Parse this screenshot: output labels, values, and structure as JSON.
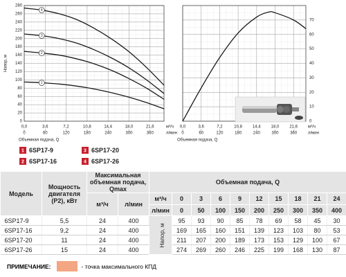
{
  "chart_data": [
    {
      "type": "line",
      "y_label": "Напор, м",
      "x_label": "Объемная подача, Q",
      "x_unit": "м³/ч",
      "x2_unit": "л/мин",
      "xlim": [
        0,
        24
      ],
      "xticks": [
        {
          "value": 0,
          "label": "0,0"
        },
        {
          "value": 3.6,
          "label": "3,6"
        },
        {
          "value": 7.2,
          "label": "7,2"
        },
        {
          "value": 10.8,
          "label": "10,8"
        },
        {
          "value": 14.4,
          "label": "14,4"
        },
        {
          "value": 18,
          "label": "18,0"
        },
        {
          "value": 21.6,
          "label": "21,6"
        }
      ],
      "x2lim": [
        0,
        400
      ],
      "x2ticks": [
        0,
        60,
        120,
        180,
        240,
        300,
        360
      ],
      "ylim": [
        0,
        280
      ],
      "yticks": [
        0,
        20,
        40,
        60,
        80,
        100,
        120,
        140,
        160,
        180,
        200,
        220,
        240,
        260,
        280
      ],
      "grid": true,
      "x": [
        0,
        3,
        6,
        9,
        12,
        15,
        18,
        21,
        24
      ],
      "series": [
        {
          "name": "6SP17-9",
          "marker": "1",
          "color": "#1a1a1a",
          "values": [
            95,
            93,
            90,
            85,
            78,
            69,
            58,
            45,
            30
          ]
        },
        {
          "name": "6SP17-16",
          "marker": "2",
          "color": "#1a1a1a",
          "values": [
            169,
            165,
            160,
            151,
            139,
            123,
            103,
            80,
            53
          ]
        },
        {
          "name": "6SP17-20",
          "marker": "3",
          "color": "#1a1a1a",
          "values": [
            211,
            207,
            200,
            189,
            173,
            153,
            129,
            100,
            67
          ]
        },
        {
          "name": "6SP17-26",
          "marker": "4",
          "color": "#1a1a1a",
          "values": [
            274,
            269,
            260,
            246,
            225,
            199,
            168,
            130,
            87
          ]
        }
      ],
      "legend_color": "#c8202e"
    },
    {
      "type": "line",
      "x_label": "Объемная подача, Q",
      "x_unit": "м³/ч",
      "x2_unit": "л/мин",
      "xlim": [
        0,
        24
      ],
      "xticks": [
        {
          "value": 0,
          "label": "0,0"
        },
        {
          "value": 3.6,
          "label": "3,6"
        },
        {
          "value": 7.2,
          "label": "7,2"
        },
        {
          "value": 10.8,
          "label": "10,8"
        },
        {
          "value": 14.4,
          "label": "14,4"
        },
        {
          "value": 18,
          "label": "18,0"
        },
        {
          "value": 21.6,
          "label": "21,6"
        }
      ],
      "x2lim": [
        0,
        400
      ],
      "x2ticks": [
        0,
        60,
        120,
        180,
        240,
        300,
        360
      ],
      "ylim": [
        0,
        80
      ],
      "yticks": [
        0,
        10,
        20,
        30,
        40,
        50,
        60,
        70
      ],
      "grid": true,
      "x": [
        0,
        3.6,
        7.2,
        10.8,
        14.4,
        16.8,
        18,
        21.6,
        24
      ],
      "series": [
        {
          "color": "#1a1a1a",
          "values": [
            0,
            23,
            44,
            61,
            72,
            75.5,
            75,
            70,
            64
          ]
        }
      ]
    }
  ],
  "table": {
    "header": {
      "model": "Модель",
      "power": "Мощность двигателя (P2), кВт",
      "qmax": "Максимальная объемная подача, Qmax",
      "qmax_units": [
        "м³/ч",
        "л/мин"
      ],
      "flow": "Объемная подача, Q",
      "flow_units": [
        "м³/ч",
        "л/мин"
      ],
      "head": "Напор, м",
      "flow_m3h": [
        0,
        3,
        6,
        9,
        12,
        15,
        18,
        21,
        24
      ],
      "flow_lmin": [
        0,
        50,
        100,
        150,
        200,
        250,
        300,
        350,
        400
      ]
    },
    "rows": [
      [
        "6SP17-9",
        "5,5",
        24,
        400,
        95,
        93,
        90,
        85,
        78,
        69,
        58,
        45,
        30
      ],
      [
        "6SP17-16",
        "9,2",
        24,
        400,
        169,
        165,
        160,
        151,
        139,
        123,
        103,
        80,
        53
      ],
      [
        "6SP17-20",
        11,
        24,
        400,
        211,
        207,
        200,
        189,
        173,
        153,
        129,
        100,
        67
      ],
      [
        "6SP17-26",
        15,
        24,
        400,
        274,
        269,
        260,
        246,
        225,
        199,
        168,
        130,
        87
      ]
    ]
  },
  "note": {
    "label": "ПРИМЕЧАНИЕ:",
    "text": "- точка максимального КПД",
    "color": "#f4a582"
  }
}
